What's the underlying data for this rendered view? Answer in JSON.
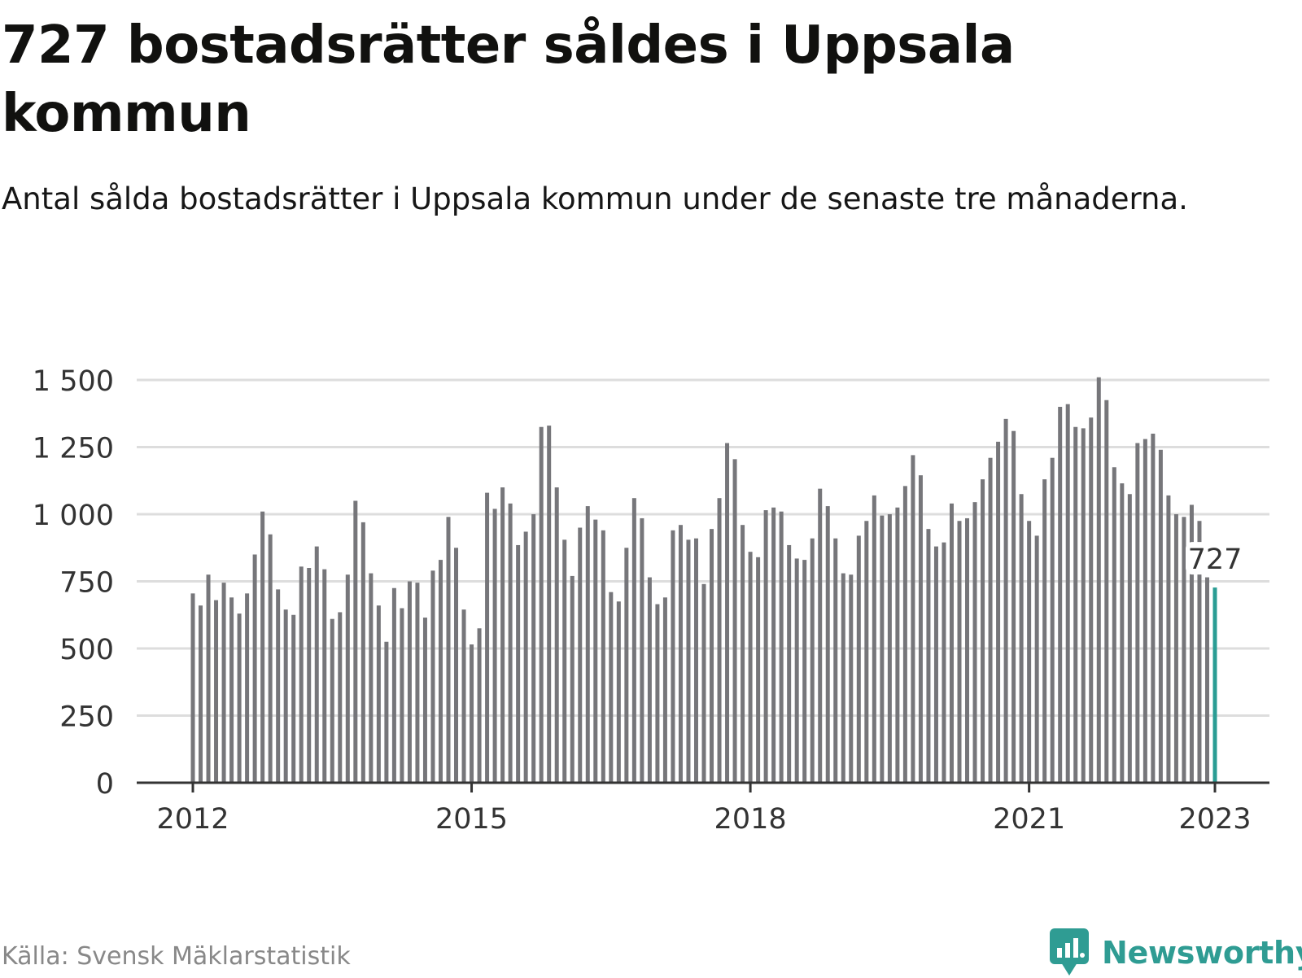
{
  "header": {
    "title": "727 bostadsrätter såldes i Uppsala kommun",
    "subtitle": "Antal sålda bostadsrätter i Uppsala kommun under de senaste tre månaderna."
  },
  "footer": {
    "source": "Källa: Svensk Mäklarstatistik",
    "brand": "Newsworthy"
  },
  "colors": {
    "bar": "#76767a",
    "highlight": "#2a9d94",
    "grid": "#dddddd",
    "axis": "#333333",
    "brand": "#2f9c93"
  },
  "chart_data": {
    "type": "bar",
    "xlabel": "",
    "ylabel": "",
    "ylim": [
      0,
      1500
    ],
    "yticks": [
      0,
      250,
      500,
      750,
      1000,
      1250,
      1500
    ],
    "ytick_labels": [
      "0",
      "250",
      "500",
      "750",
      "1 000",
      "1 250",
      "1 500"
    ],
    "xticks": [
      {
        "label": "2012",
        "index": 0
      },
      {
        "label": "2015",
        "index": 36
      },
      {
        "label": "2018",
        "index": 72
      },
      {
        "label": "2021",
        "index": 108
      },
      {
        "label": "2023",
        "index": 132
      }
    ],
    "grid": true,
    "start_month": "2012-01",
    "end_month": "2023-01",
    "highlight_label": "727",
    "values": [
      705,
      660,
      775,
      680,
      745,
      690,
      630,
      705,
      850,
      1010,
      925,
      720,
      645,
      625,
      805,
      800,
      880,
      795,
      610,
      635,
      775,
      1050,
      970,
      780,
      660,
      525,
      725,
      650,
      750,
      745,
      615,
      790,
      830,
      990,
      875,
      645,
      515,
      575,
      1080,
      1020,
      1100,
      1040,
      885,
      935,
      1000,
      1325,
      1330,
      1100,
      905,
      770,
      950,
      1030,
      980,
      940,
      710,
      675,
      875,
      1060,
      985,
      765,
      665,
      690,
      940,
      960,
      905,
      910,
      740,
      945,
      1060,
      1265,
      1205,
      960,
      860,
      840,
      1015,
      1025,
      1010,
      885,
      835,
      830,
      910,
      1095,
      1030,
      910,
      780,
      775,
      920,
      975,
      1070,
      995,
      1000,
      1025,
      1105,
      1220,
      1145,
      945,
      880,
      895,
      1040,
      975,
      985,
      1045,
      1130,
      1210,
      1270,
      1355,
      1310,
      1075,
      975,
      920,
      1130,
      1210,
      1400,
      1410,
      1325,
      1320,
      1360,
      1510,
      1425,
      1175,
      1115,
      1075,
      1265,
      1280,
      1300,
      1240,
      1070,
      1000,
      990,
      1035,
      975,
      765,
      727
    ]
  }
}
